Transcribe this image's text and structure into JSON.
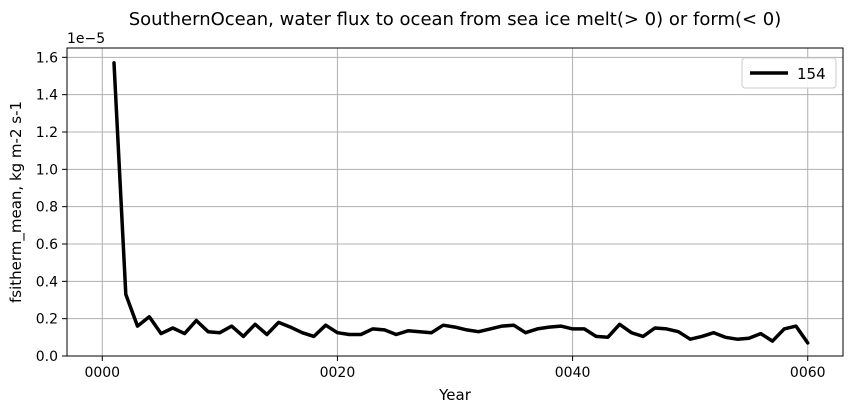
{
  "chart_data": {
    "type": "line",
    "title": "SouthernOcean, water flux to ocean from sea ice melt(> 0) or form(< 0)",
    "xlabel": "Year",
    "ylabel": "fsitherm_mean, kg m-2 s-1",
    "y_scale_label": "1e−5",
    "xlim": [
      -3,
      63
    ],
    "ylim": [
      0,
      1.65
    ],
    "xticks": [
      0,
      20,
      40,
      60
    ],
    "xtick_labels": [
      "0000",
      "0020",
      "0040",
      "0060"
    ],
    "yticks": [
      0.0,
      0.2,
      0.4,
      0.6,
      0.8,
      1.0,
      1.2,
      1.4,
      1.6
    ],
    "ytick_labels": [
      "0.0",
      "0.2",
      "0.4",
      "0.6",
      "0.8",
      "1.0",
      "1.2",
      "1.4",
      "1.6"
    ],
    "grid": true,
    "legend_position": "top-right",
    "series": [
      {
        "name": "154",
        "color": "#000000",
        "x": [
          1,
          2,
          3,
          4,
          5,
          6,
          7,
          8,
          9,
          10,
          11,
          12,
          13,
          14,
          15,
          16,
          17,
          18,
          19,
          20,
          21,
          22,
          23,
          24,
          25,
          26,
          27,
          28,
          29,
          30,
          31,
          32,
          33,
          34,
          35,
          36,
          37,
          38,
          39,
          40,
          41,
          42,
          43,
          44,
          45,
          46,
          47,
          48,
          49,
          50,
          51,
          52,
          53,
          54,
          55,
          56,
          57,
          58,
          59,
          60
        ],
        "values": [
          1.57,
          0.33,
          0.16,
          0.21,
          0.12,
          0.15,
          0.12,
          0.19,
          0.13,
          0.125,
          0.16,
          0.105,
          0.17,
          0.115,
          0.18,
          0.155,
          0.125,
          0.105,
          0.165,
          0.125,
          0.115,
          0.115,
          0.145,
          0.14,
          0.115,
          0.135,
          0.13,
          0.125,
          0.165,
          0.155,
          0.14,
          0.13,
          0.145,
          0.16,
          0.165,
          0.125,
          0.145,
          0.155,
          0.16,
          0.145,
          0.145,
          0.105,
          0.1,
          0.17,
          0.125,
          0.105,
          0.15,
          0.145,
          0.13,
          0.09,
          0.105,
          0.125,
          0.1,
          0.09,
          0.095,
          0.12,
          0.08,
          0.145,
          0.16,
          0.07
        ]
      }
    ]
  }
}
